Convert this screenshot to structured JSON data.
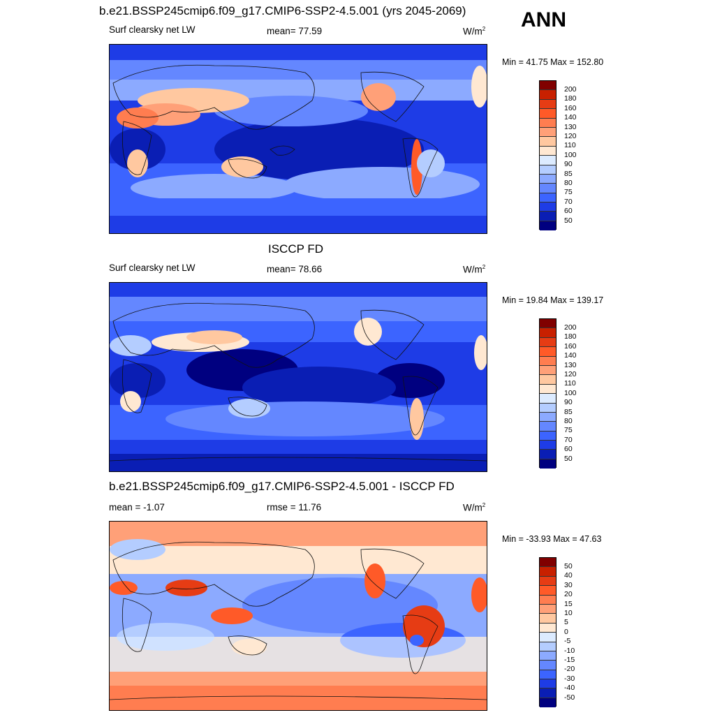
{
  "season": "ANN",
  "panels": [
    {
      "title": "b.e21.BSSP245cmip6.f09_g17.CMIP6-SSP2-4.5.001 (yrs 2045-2069)",
      "left_label": "Surf clearsky net LW",
      "center_label": "mean=  77.59",
      "units": "W/m",
      "units_sup": "2",
      "minmax": "Min =  41.75 Max = 152.80",
      "colorbar": {
        "labels": [
          "200",
          "180",
          "160",
          "140",
          "130",
          "120",
          "110",
          "100",
          "90",
          "85",
          "80",
          "75",
          "70",
          "60",
          "50"
        ],
        "colors": [
          "#800000",
          "#c82000",
          "#e63c14",
          "#ff5a28",
          "#ff7d50",
          "#ffa078",
          "#ffc8a0",
          "#ffe8d2",
          "#dcebff",
          "#b4cdff",
          "#8caaff",
          "#6487ff",
          "#3c64ff",
          "#1e3ce6",
          "#0a1eb4",
          "#000080"
        ]
      }
    },
    {
      "title": "ISCCP FD",
      "left_label": "Surf clearsky net LW",
      "center_label": "mean=  78.66",
      "units": "W/m",
      "units_sup": "2",
      "minmax": "Min =  19.84 Max = 139.17",
      "colorbar": {
        "labels": [
          "200",
          "180",
          "160",
          "140",
          "130",
          "120",
          "110",
          "100",
          "90",
          "85",
          "80",
          "75",
          "70",
          "60",
          "50"
        ],
        "colors": [
          "#800000",
          "#c82000",
          "#e63c14",
          "#ff5a28",
          "#ff7d50",
          "#ffa078",
          "#ffc8a0",
          "#ffe8d2",
          "#dcebff",
          "#b4cdff",
          "#8caaff",
          "#6487ff",
          "#3c64ff",
          "#1e3ce6",
          "#0a1eb4",
          "#000080"
        ]
      }
    },
    {
      "title": "b.e21.BSSP245cmip6.f09_g17.CMIP6-SSP2-4.5.001 - ISCCP FD",
      "left_label": "mean =  -1.07",
      "center_label": "rmse =  11.76",
      "units": "W/m",
      "units_sup": "2",
      "minmax": "Min = -33.93 Max =  47.63",
      "colorbar": {
        "labels": [
          "50",
          "40",
          "30",
          "20",
          "15",
          "10",
          "5",
          "0",
          "-5",
          "-10",
          "-15",
          "-20",
          "-30",
          "-40",
          "-50"
        ],
        "colors": [
          "#800000",
          "#c82000",
          "#e63c14",
          "#ff5a28",
          "#ff7d50",
          "#ffa078",
          "#ffc8a0",
          "#ffe8d2",
          "#dcebff",
          "#b4cdff",
          "#8caaff",
          "#6487ff",
          "#3c64ff",
          "#1e3ce6",
          "#0a1eb4",
          "#000080"
        ]
      }
    }
  ]
}
